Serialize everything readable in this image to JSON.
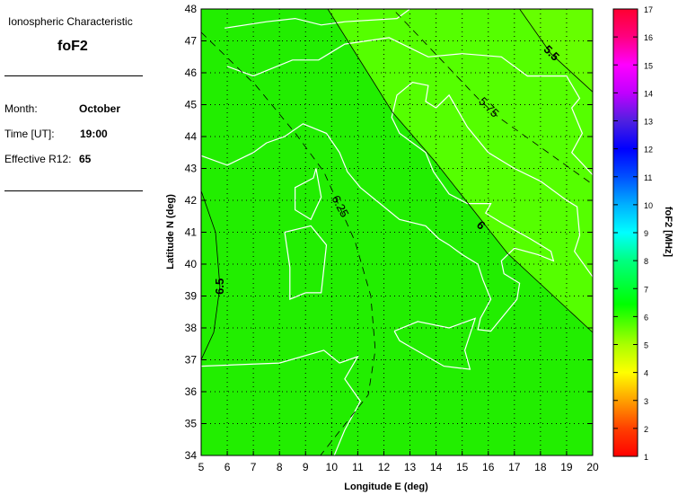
{
  "panel": {
    "heading": "Ionospheric Characteristic",
    "characteristic": "foF2",
    "month_label": "Month:",
    "month_value": "October",
    "time_label": "Time [UT]:",
    "time_value": "19:00",
    "r12_label": "Effective R12:",
    "r12_value": "65"
  },
  "chart_data": {
    "type": "contour-map",
    "xlabel": "Longitude E (deg)",
    "ylabel": "Latitude N (deg)",
    "xlim": [
      5,
      20
    ],
    "ylim": [
      34,
      48
    ],
    "xticks": [
      "5",
      "6",
      "7",
      "8",
      "9",
      "10",
      "11",
      "12",
      "13",
      "14",
      "15",
      "16",
      "17",
      "18",
      "19",
      "20"
    ],
    "yticks": [
      "34",
      "35",
      "36",
      "37",
      "38",
      "39",
      "40",
      "41",
      "42",
      "43",
      "44",
      "45",
      "46",
      "47",
      "48"
    ],
    "grid": true,
    "contours": [
      {
        "label": "6.5",
        "style": "solid",
        "points": [
          [
            5,
            42.3
          ],
          [
            5.55,
            41
          ],
          [
            5.72,
            39.3
          ],
          [
            5.48,
            37.86
          ],
          [
            5,
            37
          ]
        ]
      },
      {
        "label": "6.25",
        "style": "dashed",
        "points": [
          [
            5,
            47.27
          ],
          [
            7.1,
            45.6
          ],
          [
            8.65,
            44.06
          ],
          [
            9.7,
            42.9
          ],
          [
            10.3,
            41.8
          ],
          [
            10.9,
            40.7
          ],
          [
            11.5,
            39
          ],
          [
            11.67,
            37.3
          ],
          [
            11.4,
            35.9
          ],
          [
            9.57,
            34
          ]
        ]
      },
      {
        "label": "6",
        "style": "solid",
        "points": [
          [
            9.85,
            48
          ],
          [
            12.33,
            44.76
          ],
          [
            13.98,
            43.2
          ],
          [
            16.73,
            40.34
          ],
          [
            20,
            37.86
          ]
        ]
      },
      {
        "label": "5.75",
        "style": "dashed",
        "points": [
          [
            12.46,
            47.9
          ],
          [
            15.6,
            45.2
          ],
          [
            16.4,
            44.6
          ],
          [
            20,
            42.5
          ]
        ]
      },
      {
        "label": "5.5",
        "style": "solid",
        "points": [
          [
            17.2,
            48
          ],
          [
            18.4,
            46.6
          ],
          [
            20,
            45.4
          ]
        ]
      }
    ],
    "colorbar": {
      "label": "foF2 [MHz]",
      "range": [
        1,
        17
      ],
      "ticks": [
        "1",
        "2",
        "3",
        "4",
        "5",
        "6",
        "7",
        "8",
        "9",
        "10",
        "11",
        "12",
        "13",
        "14",
        "15",
        "16",
        "17"
      ]
    },
    "colors": {
      "field_main": "#22ee00",
      "field_low": "#55ff00",
      "field_lowest": "#66ff00",
      "coastline": "#ffffff"
    }
  }
}
